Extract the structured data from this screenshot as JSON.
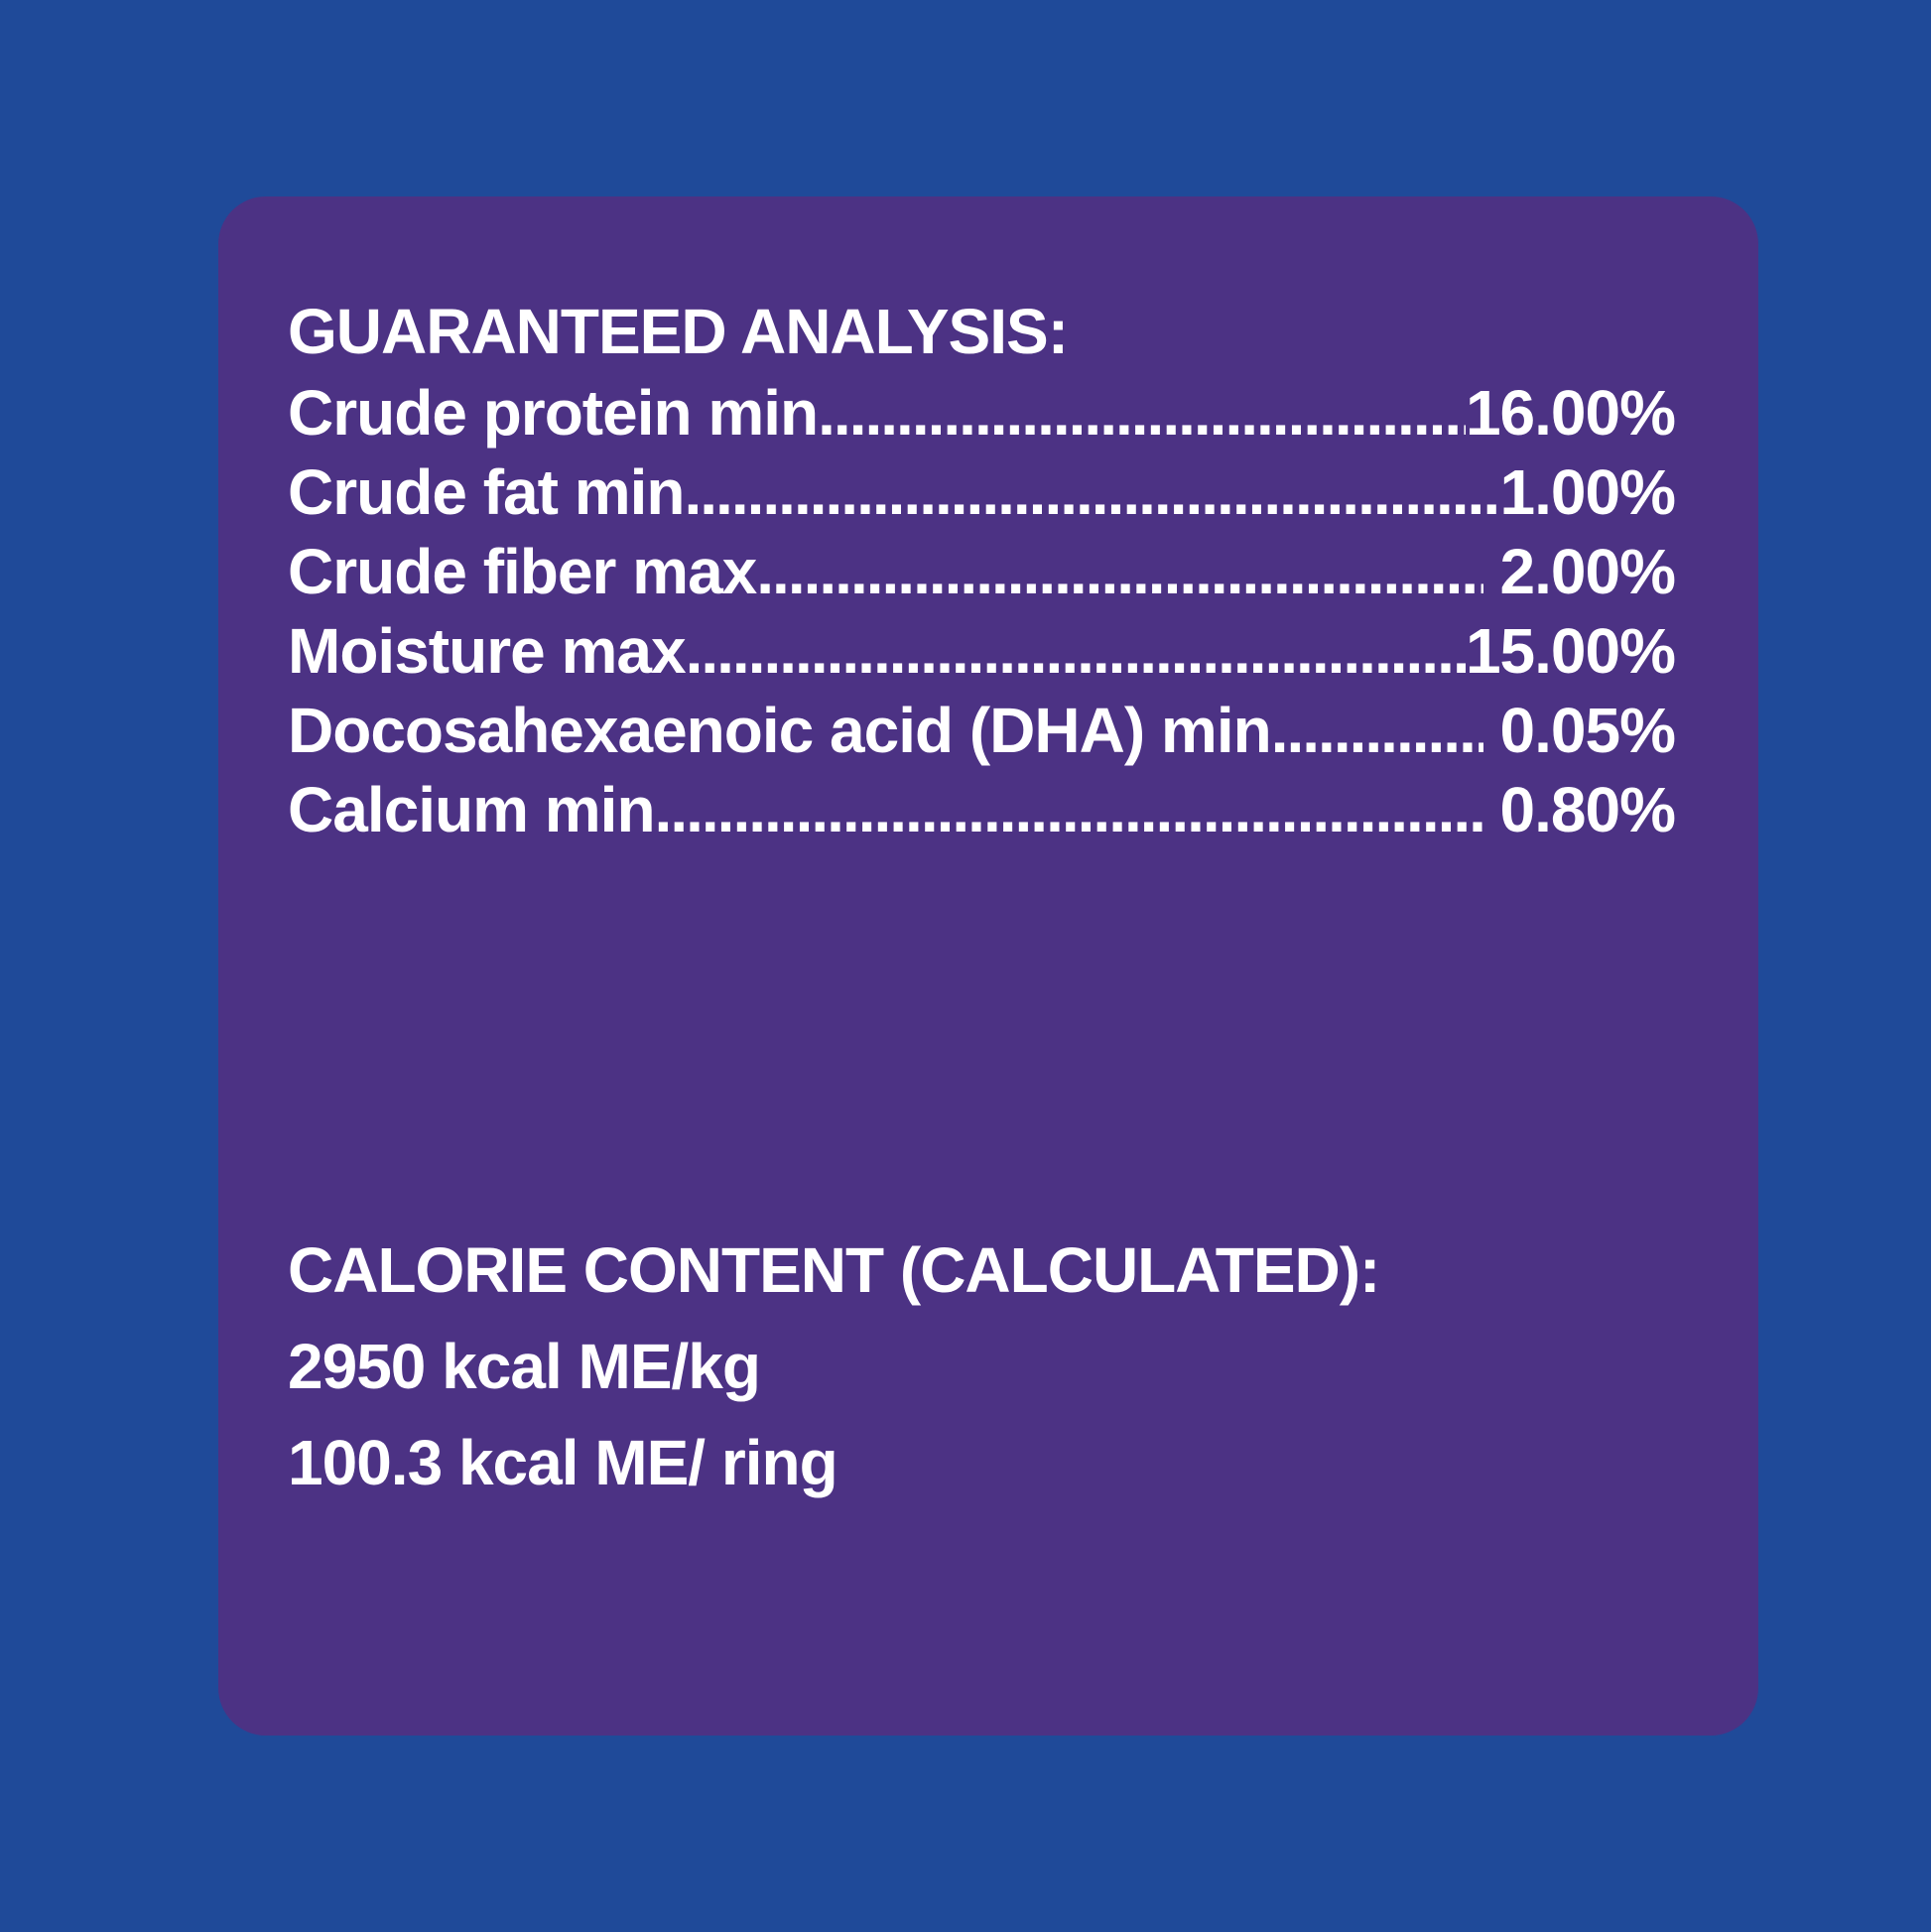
{
  "colors": {
    "background": "#1F4A99",
    "panel": "#4C3284",
    "text": "#FFFFFF"
  },
  "guaranteed_analysis": {
    "title": "GUARANTEED ANALYSIS:",
    "rows": [
      {
        "label": "Crude protein min",
        "leader": "....................................................................................................",
        "value": "16.00%"
      },
      {
        "label": "Crude fat min",
        "leader": "....................................................................................................",
        "value": "1.00%"
      },
      {
        "label": "Crude fiber max",
        "leader": "....................................................................................................",
        "value": " 2.00%"
      },
      {
        "label": "Moisture max",
        "leader": "....................................................................................................",
        "value": "15.00%"
      },
      {
        "label": "Docosahexaenoic acid (DHA) min",
        "leader": "....................................................................................................",
        "value": " 0.05%"
      },
      {
        "label": "Calcium min",
        "leader": "....................................................................................................",
        "value": " 0.80%"
      }
    ]
  },
  "calorie_content": {
    "title": "CALORIE CONTENT (CALCULATED):",
    "lines": [
      "2950 kcal ME/kg",
      "100.3 kcal ME/ ring"
    ]
  }
}
